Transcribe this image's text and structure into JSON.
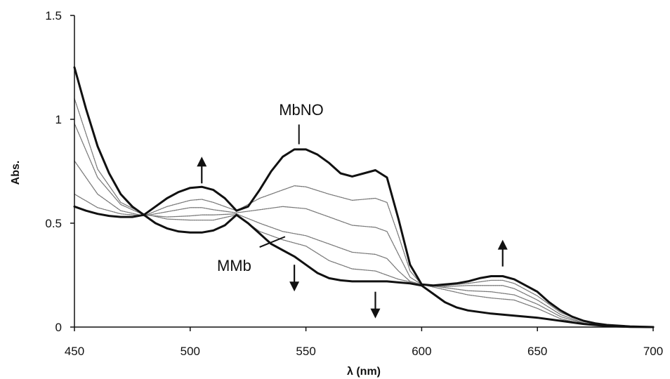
{
  "chart_data": {
    "type": "line",
    "title": "",
    "xlabel": "λ (nm)",
    "ylabel": "Abs.",
    "xlim": [
      450,
      700
    ],
    "ylim": [
      0,
      1.5
    ],
    "x_ticks": [
      "450",
      "500",
      "550",
      "600",
      "650",
      "700"
    ],
    "y_ticks": [
      "0",
      "0.5",
      "1",
      "1.5"
    ],
    "grid": false,
    "legend": "none",
    "annotations": [
      {
        "label": "MbNO",
        "target_series": "MbNO"
      },
      {
        "label": "MMb",
        "target_series": "MMb"
      }
    ],
    "arrows": [
      {
        "direction": "up",
        "x": 505,
        "y": 0.82
      },
      {
        "direction": "down",
        "x": 545,
        "y": 0.3
      },
      {
        "direction": "down",
        "x": 580,
        "y": 0.17
      },
      {
        "direction": "up",
        "x": 635,
        "y": 0.42
      }
    ],
    "series": [
      {
        "name": "MbNO",
        "style": "bold",
        "points": [
          [
            450,
            0.58
          ],
          [
            455,
            0.56
          ],
          [
            460,
            0.545
          ],
          [
            465,
            0.535
          ],
          [
            470,
            0.53
          ],
          [
            475,
            0.53
          ],
          [
            480,
            0.54
          ],
          [
            485,
            0.58
          ],
          [
            490,
            0.62
          ],
          [
            495,
            0.65
          ],
          [
            500,
            0.67
          ],
          [
            505,
            0.675
          ],
          [
            510,
            0.66
          ],
          [
            515,
            0.62
          ],
          [
            520,
            0.56
          ],
          [
            525,
            0.58
          ],
          [
            530,
            0.66
          ],
          [
            535,
            0.75
          ],
          [
            540,
            0.82
          ],
          [
            545,
            0.855
          ],
          [
            550,
            0.855
          ],
          [
            555,
            0.83
          ],
          [
            560,
            0.79
          ],
          [
            565,
            0.74
          ],
          [
            570,
            0.725
          ],
          [
            575,
            0.74
          ],
          [
            580,
            0.755
          ],
          [
            585,
            0.72
          ],
          [
            590,
            0.52
          ],
          [
            595,
            0.3
          ],
          [
            600,
            0.205
          ],
          [
            605,
            0.2
          ],
          [
            610,
            0.205
          ],
          [
            615,
            0.21
          ],
          [
            620,
            0.22
          ],
          [
            625,
            0.235
          ],
          [
            630,
            0.245
          ],
          [
            635,
            0.245
          ],
          [
            640,
            0.23
          ],
          [
            645,
            0.2
          ],
          [
            650,
            0.17
          ],
          [
            655,
            0.12
          ],
          [
            660,
            0.08
          ],
          [
            665,
            0.05
          ],
          [
            670,
            0.03
          ],
          [
            675,
            0.018
          ],
          [
            680,
            0.01
          ],
          [
            690,
            0.003
          ],
          [
            700,
            0.0
          ]
        ]
      },
      {
        "name": "",
        "style": "dotted",
        "points": [
          [
            450,
            0.64
          ],
          [
            460,
            0.575
          ],
          [
            470,
            0.545
          ],
          [
            480,
            0.535
          ],
          [
            490,
            0.58
          ],
          [
            500,
            0.61
          ],
          [
            505,
            0.615
          ],
          [
            510,
            0.6
          ],
          [
            520,
            0.56
          ],
          [
            530,
            0.62
          ],
          [
            540,
            0.66
          ],
          [
            545,
            0.68
          ],
          [
            550,
            0.675
          ],
          [
            560,
            0.64
          ],
          [
            570,
            0.61
          ],
          [
            580,
            0.62
          ],
          [
            585,
            0.6
          ],
          [
            590,
            0.44
          ],
          [
            595,
            0.27
          ],
          [
            600,
            0.205
          ],
          [
            610,
            0.2
          ],
          [
            620,
            0.21
          ],
          [
            630,
            0.225
          ],
          [
            635,
            0.225
          ],
          [
            640,
            0.21
          ],
          [
            650,
            0.15
          ],
          [
            660,
            0.07
          ],
          [
            670,
            0.026
          ],
          [
            680,
            0.008
          ],
          [
            700,
            0.0
          ]
        ]
      },
      {
        "name": "",
        "style": "dotted",
        "points": [
          [
            450,
            0.8
          ],
          [
            460,
            0.64
          ],
          [
            470,
            0.56
          ],
          [
            480,
            0.535
          ],
          [
            490,
            0.555
          ],
          [
            500,
            0.575
          ],
          [
            505,
            0.575
          ],
          [
            510,
            0.565
          ],
          [
            520,
            0.55
          ],
          [
            530,
            0.565
          ],
          [
            540,
            0.58
          ],
          [
            550,
            0.57
          ],
          [
            560,
            0.53
          ],
          [
            570,
            0.49
          ],
          [
            580,
            0.48
          ],
          [
            585,
            0.46
          ],
          [
            590,
            0.35
          ],
          [
            595,
            0.24
          ],
          [
            600,
            0.205
          ],
          [
            610,
            0.195
          ],
          [
            620,
            0.2
          ],
          [
            630,
            0.2
          ],
          [
            635,
            0.2
          ],
          [
            640,
            0.185
          ],
          [
            650,
            0.13
          ],
          [
            660,
            0.06
          ],
          [
            670,
            0.02
          ],
          [
            680,
            0.006
          ],
          [
            700,
            0.0
          ]
        ]
      },
      {
        "name": "",
        "style": "dotted",
        "points": [
          [
            450,
            0.98
          ],
          [
            460,
            0.72
          ],
          [
            470,
            0.59
          ],
          [
            480,
            0.54
          ],
          [
            490,
            0.53
          ],
          [
            500,
            0.535
          ],
          [
            505,
            0.54
          ],
          [
            510,
            0.54
          ],
          [
            520,
            0.545
          ],
          [
            530,
            0.5
          ],
          [
            540,
            0.46
          ],
          [
            550,
            0.44
          ],
          [
            560,
            0.4
          ],
          [
            570,
            0.36
          ],
          [
            580,
            0.35
          ],
          [
            585,
            0.33
          ],
          [
            590,
            0.27
          ],
          [
            595,
            0.22
          ],
          [
            600,
            0.205
          ],
          [
            610,
            0.19
          ],
          [
            620,
            0.175
          ],
          [
            630,
            0.17
          ],
          [
            640,
            0.155
          ],
          [
            650,
            0.11
          ],
          [
            660,
            0.05
          ],
          [
            670,
            0.018
          ],
          [
            680,
            0.005
          ],
          [
            700,
            0.0
          ]
        ]
      },
      {
        "name": "",
        "style": "dotted",
        "points": [
          [
            450,
            1.1
          ],
          [
            460,
            0.76
          ],
          [
            470,
            0.6
          ],
          [
            480,
            0.545
          ],
          [
            490,
            0.52
          ],
          [
            500,
            0.515
          ],
          [
            510,
            0.515
          ],
          [
            520,
            0.54
          ],
          [
            530,
            0.46
          ],
          [
            540,
            0.42
          ],
          [
            550,
            0.39
          ],
          [
            560,
            0.32
          ],
          [
            570,
            0.28
          ],
          [
            580,
            0.27
          ],
          [
            590,
            0.23
          ],
          [
            600,
            0.205
          ],
          [
            610,
            0.18
          ],
          [
            620,
            0.155
          ],
          [
            630,
            0.14
          ],
          [
            640,
            0.13
          ],
          [
            650,
            0.09
          ],
          [
            660,
            0.04
          ],
          [
            670,
            0.014
          ],
          [
            680,
            0.004
          ],
          [
            700,
            0.0
          ]
        ]
      },
      {
        "name": "MMb",
        "style": "bold",
        "points": [
          [
            450,
            1.25
          ],
          [
            455,
            1.05
          ],
          [
            460,
            0.87
          ],
          [
            465,
            0.74
          ],
          [
            470,
            0.64
          ],
          [
            475,
            0.58
          ],
          [
            480,
            0.54
          ],
          [
            485,
            0.5
          ],
          [
            490,
            0.475
          ],
          [
            495,
            0.46
          ],
          [
            500,
            0.455
          ],
          [
            505,
            0.455
          ],
          [
            510,
            0.465
          ],
          [
            515,
            0.49
          ],
          [
            520,
            0.54
          ],
          [
            525,
            0.5
          ],
          [
            530,
            0.45
          ],
          [
            535,
            0.4
          ],
          [
            540,
            0.37
          ],
          [
            545,
            0.34
          ],
          [
            550,
            0.3
          ],
          [
            555,
            0.26
          ],
          [
            560,
            0.235
          ],
          [
            565,
            0.225
          ],
          [
            570,
            0.22
          ],
          [
            575,
            0.22
          ],
          [
            580,
            0.22
          ],
          [
            585,
            0.22
          ],
          [
            590,
            0.215
          ],
          [
            595,
            0.21
          ],
          [
            600,
            0.2
          ],
          [
            605,
            0.16
          ],
          [
            610,
            0.12
          ],
          [
            615,
            0.095
          ],
          [
            620,
            0.08
          ],
          [
            630,
            0.065
          ],
          [
            640,
            0.055
          ],
          [
            650,
            0.045
          ],
          [
            660,
            0.03
          ],
          [
            670,
            0.015
          ],
          [
            680,
            0.005
          ],
          [
            690,
            0.001
          ],
          [
            700,
            0.0
          ]
        ]
      }
    ]
  }
}
